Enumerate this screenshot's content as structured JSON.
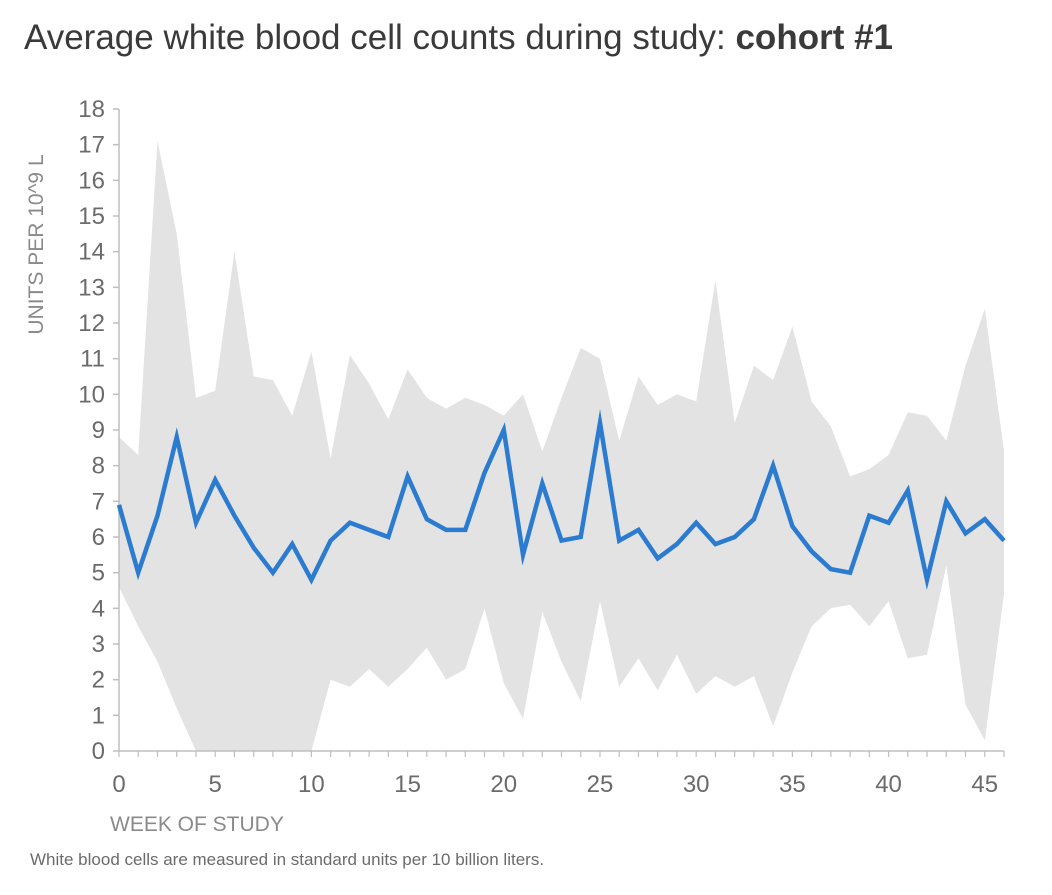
{
  "chart_data": {
    "type": "line",
    "title": "Average white blood cell counts during study:",
    "title_emphasis": "cohort #1",
    "xlabel": "WEEK OF STUDY",
    "ylabel": "UNITS PER 10^9 L",
    "footnote": "White blood cells are measured in standard units per 10 billion liters.",
    "xlim": [
      0,
      46
    ],
    "ylim": [
      0,
      18
    ],
    "xticks": [
      0,
      5,
      10,
      15,
      20,
      25,
      30,
      35,
      40,
      45
    ],
    "yticks": [
      0,
      1,
      2,
      3,
      4,
      5,
      6,
      7,
      8,
      9,
      10,
      11,
      12,
      13,
      14,
      15,
      16,
      17,
      18
    ],
    "grid": false,
    "colors": {
      "line": "#2b7bd0",
      "band": "#e3e3e3",
      "axis": "#bfbfbf"
    },
    "x": [
      0,
      1,
      2,
      3,
      4,
      5,
      6,
      7,
      8,
      9,
      10,
      11,
      12,
      13,
      14,
      15,
      16,
      17,
      18,
      19,
      20,
      21,
      22,
      23,
      24,
      25,
      26,
      27,
      28,
      29,
      30,
      31,
      32,
      33,
      34,
      35,
      36,
      37,
      38,
      39,
      40,
      41,
      42,
      43,
      44,
      45,
      46
    ],
    "series": [
      {
        "role": "average",
        "values": [
          6.9,
          5.0,
          6.6,
          8.8,
          6.4,
          7.6,
          6.6,
          5.7,
          5.0,
          5.8,
          4.8,
          5.9,
          6.4,
          6.2,
          6.0,
          7.7,
          6.5,
          6.2,
          6.2,
          7.8,
          9.0,
          5.5,
          7.5,
          5.9,
          6.0,
          9.2,
          5.9,
          6.2,
          5.4,
          5.8,
          6.4,
          5.8,
          6.0,
          6.5,
          8.0,
          6.3,
          5.6,
          5.1,
          5.0,
          6.6,
          6.4,
          7.3,
          4.8,
          7.0,
          6.1,
          6.5,
          5.9
        ]
      },
      {
        "role": "range-high",
        "values": [
          8.8,
          8.3,
          17.1,
          14.5,
          9.9,
          10.1,
          14.0,
          10.5,
          10.4,
          9.4,
          11.2,
          8.2,
          11.1,
          10.3,
          9.3,
          10.7,
          9.9,
          9.6,
          9.9,
          9.7,
          9.4,
          10.0,
          8.4,
          9.9,
          11.3,
          11.0,
          8.7,
          10.5,
          9.7,
          10.0,
          9.8,
          13.2,
          9.2,
          10.8,
          10.4,
          11.9,
          9.8,
          9.1,
          7.7,
          7.9,
          8.3,
          9.5,
          9.4,
          8.7,
          10.8,
          12.4,
          8.4
        ]
      },
      {
        "role": "range-low",
        "values": [
          4.6,
          3.5,
          2.5,
          1.2,
          0.0,
          0.0,
          0.0,
          0.0,
          0.0,
          0.0,
          0.0,
          2.0,
          1.8,
          2.3,
          1.8,
          2.3,
          2.9,
          2.0,
          2.3,
          4.0,
          1.9,
          0.9,
          3.9,
          2.5,
          1.4,
          4.2,
          1.8,
          2.6,
          1.7,
          2.7,
          1.6,
          2.1,
          1.8,
          2.1,
          0.7,
          2.2,
          3.5,
          4.0,
          4.1,
          3.5,
          4.2,
          2.6,
          2.7,
          5.2,
          1.3,
          0.3,
          4.4
        ]
      }
    ]
  }
}
